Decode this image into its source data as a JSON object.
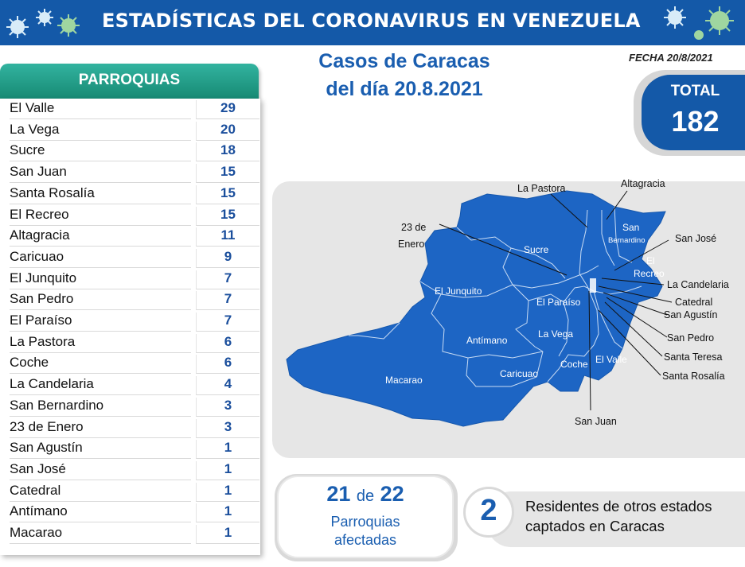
{
  "header": {
    "title": "ESTADÍSTICAS DEL CORONAVIRUS EN VENEZUELA"
  },
  "table": {
    "header": "PARROQUIAS",
    "rows": [
      {
        "name": "El Valle",
        "cases": "29"
      },
      {
        "name": "La Vega",
        "cases": "20"
      },
      {
        "name": "Sucre",
        "cases": "18"
      },
      {
        "name": "San Juan",
        "cases": "15"
      },
      {
        "name": "Santa Rosalía",
        "cases": "15"
      },
      {
        "name": "El Recreo",
        "cases": "15"
      },
      {
        "name": "Altagracia",
        "cases": "11"
      },
      {
        "name": "Caricuao",
        "cases": "9"
      },
      {
        "name": "El Junquito",
        "cases": "7"
      },
      {
        "name": "San Pedro",
        "cases": "7"
      },
      {
        "name": "El Paraíso",
        "cases": "7"
      },
      {
        "name": "La Pastora",
        "cases": "6"
      },
      {
        "name": "Coche",
        "cases": "6"
      },
      {
        "name": "La Candelaria",
        "cases": "4"
      },
      {
        "name": "San Bernardino",
        "cases": "3"
      },
      {
        "name": "23 de Enero",
        "cases": "3"
      },
      {
        "name": "San Agustín",
        "cases": "1"
      },
      {
        "name": "San José",
        "cases": "1"
      },
      {
        "name": "Catedral",
        "cases": "1"
      },
      {
        "name": "Antímano",
        "cases": "1"
      },
      {
        "name": "Macarao",
        "cases": "1"
      }
    ]
  },
  "map": {
    "title_line1": "Casos de Caracas",
    "title_line2": "del día 20.8.2021",
    "inner_labels": {
      "san": "San",
      "bernardino": "Bernardino",
      "el": "El",
      "recreo": "Recreo",
      "sucre": "Sucre",
      "el_junquito": "El Junquito",
      "el_paraiso": "El Paraíso",
      "la_vega": "La Vega",
      "antimano": "Antímano",
      "caricuao": "Caricuao",
      "coche": "Coche",
      "el_valle": "El Valle",
      "macarao": "Macarao"
    },
    "outer_labels": {
      "la_pastora": "La Pastora",
      "altagracia": "Altagracia",
      "veintitres": "23 de",
      "enero": "Enero",
      "san_jose": "San José",
      "la_candelaria": "La Candelaria",
      "catedral": "Catedral",
      "san_agustin": "San Agustín",
      "san_pedro": "San Pedro",
      "santa_teresa": "Santa Teresa",
      "santa_rosalia": "Santa Rosalía",
      "san_juan": "San Juan"
    },
    "fill_color": "#1d65c4"
  },
  "fecha": "FECHA 20/8/2021",
  "total": {
    "label": "TOTAL",
    "value": "182"
  },
  "afectadas": {
    "count": "21",
    "de": "de",
    "total": "22",
    "line1": "Parroquias",
    "line2": "afectadas"
  },
  "residentes": {
    "count": "2",
    "line1": "Residentes de otros estados",
    "line2": "captados en Caracas"
  },
  "colors": {
    "brand_blue": "#1459a8",
    "header_green": "#1f9c86",
    "text_blue": "#1a5eb0"
  }
}
